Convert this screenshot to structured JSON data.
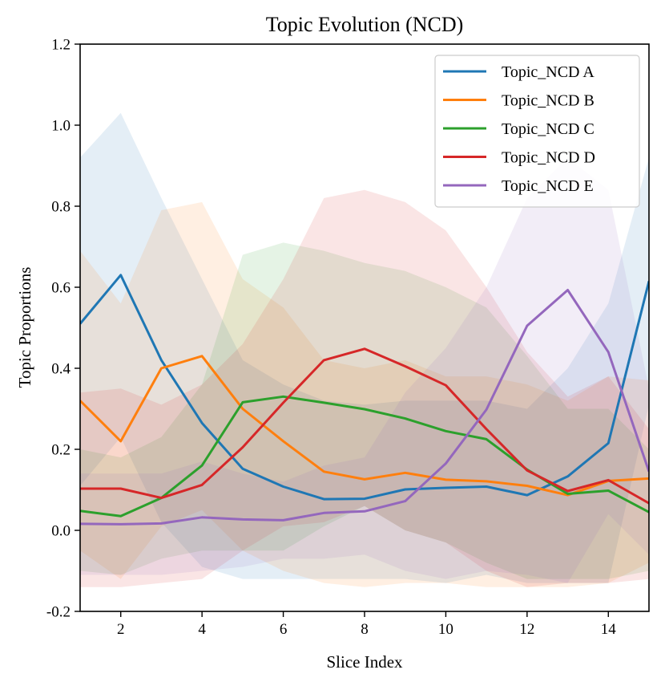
{
  "chart_data": {
    "type": "line",
    "title": "Topic Evolution (NCD)",
    "xlabel": "Slice Index",
    "ylabel": "Topic Proportions",
    "xlim": [
      1,
      15
    ],
    "ylim": [
      -0.2,
      1.2
    ],
    "xticks": [
      2,
      4,
      6,
      8,
      10,
      12,
      14
    ],
    "xtick_labels": [
      "2",
      "4",
      "6",
      "8",
      "10",
      "12",
      "14"
    ],
    "yticks": [
      -0.2,
      0.0,
      0.2,
      0.4,
      0.6,
      0.8,
      1.0,
      1.2
    ],
    "ytick_labels": [
      "-0.2",
      "0.0",
      "0.2",
      "0.4",
      "0.6",
      "0.8",
      "1.0",
      "1.2"
    ],
    "legend_position": "top-right",
    "x": [
      1,
      2,
      3,
      4,
      5,
      6,
      7,
      8,
      9,
      10,
      11,
      12,
      13,
      14,
      15
    ],
    "series": [
      {
        "name": "Topic_NCD A",
        "color": "#1f77b4",
        "values": [
          0.51,
          0.63,
          0.42,
          0.265,
          0.152,
          0.108,
          0.077,
          0.078,
          0.101,
          0.105,
          0.108,
          0.087,
          0.133,
          0.215,
          0.615
        ],
        "upper": [
          0.92,
          1.03,
          0.82,
          0.62,
          0.42,
          0.36,
          0.32,
          0.31,
          0.32,
          0.32,
          0.32,
          0.3,
          0.4,
          0.56,
          0.92
        ],
        "lower": [
          0.11,
          0.23,
          0.02,
          -0.09,
          -0.12,
          -0.12,
          -0.12,
          -0.12,
          -0.12,
          -0.13,
          -0.11,
          -0.13,
          -0.13,
          -0.13,
          0.31
        ]
      },
      {
        "name": "Topic_NCD B",
        "color": "#ff7f0e",
        "values": [
          0.32,
          0.22,
          0.4,
          0.43,
          0.3,
          0.22,
          0.145,
          0.126,
          0.142,
          0.125,
          0.121,
          0.11,
          0.087,
          0.122,
          0.128
        ],
        "upper": [
          0.69,
          0.56,
          0.79,
          0.81,
          0.62,
          0.55,
          0.42,
          0.4,
          0.42,
          0.38,
          0.38,
          0.36,
          0.32,
          0.38,
          0.37
        ],
        "lower": [
          -0.05,
          -0.12,
          0.01,
          0.05,
          -0.05,
          -0.1,
          -0.13,
          -0.14,
          -0.13,
          -0.13,
          -0.14,
          -0.14,
          -0.14,
          -0.13,
          -0.08
        ]
      },
      {
        "name": "Topic_NCD C",
        "color": "#2ca02c",
        "values": [
          0.048,
          0.035,
          0.08,
          0.16,
          0.316,
          0.33,
          0.315,
          0.299,
          0.276,
          0.245,
          0.225,
          0.15,
          0.09,
          0.098,
          0.045
        ],
        "upper": [
          0.2,
          0.18,
          0.23,
          0.36,
          0.68,
          0.71,
          0.69,
          0.66,
          0.64,
          0.6,
          0.55,
          0.43,
          0.3,
          0.3,
          0.2
        ],
        "lower": [
          -0.1,
          -0.11,
          -0.07,
          -0.05,
          -0.05,
          -0.05,
          0.01,
          0.06,
          0.0,
          -0.03,
          -0.08,
          -0.12,
          -0.12,
          -0.12,
          -0.1
        ]
      },
      {
        "name": "Topic_NCD D",
        "color": "#d62728",
        "values": [
          0.103,
          0.103,
          0.08,
          0.112,
          0.205,
          0.315,
          0.42,
          0.448,
          0.405,
          0.358,
          0.25,
          0.148,
          0.097,
          0.124,
          0.067
        ],
        "upper": [
          0.34,
          0.35,
          0.31,
          0.36,
          0.46,
          0.62,
          0.82,
          0.84,
          0.81,
          0.74,
          0.6,
          0.44,
          0.33,
          0.38,
          0.25
        ],
        "lower": [
          -0.14,
          -0.14,
          -0.13,
          -0.12,
          -0.05,
          0.01,
          0.02,
          0.06,
          0.0,
          -0.03,
          -0.1,
          -0.14,
          -0.13,
          -0.13,
          -0.12
        ]
      },
      {
        "name": "Topic_NCD E",
        "color": "#9467bd",
        "values": [
          0.016,
          0.015,
          0.017,
          0.032,
          0.027,
          0.025,
          0.043,
          0.047,
          0.072,
          0.165,
          0.298,
          0.505,
          0.593,
          0.44,
          0.145
        ],
        "upper": [
          0.14,
          0.14,
          0.14,
          0.17,
          0.14,
          0.12,
          0.16,
          0.18,
          0.34,
          0.45,
          0.6,
          0.82,
          0.92,
          0.84,
          0.35
        ],
        "lower": [
          -0.11,
          -0.11,
          -0.11,
          -0.1,
          -0.09,
          -0.07,
          -0.07,
          -0.06,
          -0.1,
          -0.12,
          -0.1,
          -0.11,
          -0.13,
          0.04,
          -0.06
        ]
      }
    ]
  }
}
